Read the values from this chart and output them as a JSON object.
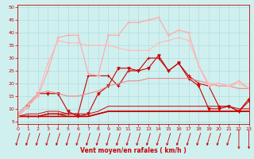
{
  "title": "",
  "xlabel": "Vent moyen/en rafales ( km/h )",
  "ylabel": "",
  "background_color": "#d0f0f0",
  "grid_color": "#aad8d8",
  "x_ticks": [
    0,
    1,
    2,
    3,
    4,
    5,
    6,
    7,
    8,
    9,
    10,
    11,
    12,
    13,
    14,
    15,
    16,
    17,
    18,
    19,
    20,
    21,
    22,
    23
  ],
  "y_ticks": [
    5,
    10,
    15,
    20,
    25,
    30,
    35,
    40,
    45,
    50
  ],
  "ylim": [
    4,
    51
  ],
  "xlim": [
    0,
    23
  ],
  "lines": [
    {
      "x": [
        0,
        1,
        2,
        3,
        4,
        5,
        6,
        7,
        8,
        9,
        10,
        11,
        12,
        13,
        14,
        15,
        16,
        17,
        18,
        19,
        20,
        21,
        22,
        23
      ],
      "y": [
        7,
        7,
        7,
        8,
        8,
        8,
        8,
        23,
        23,
        23,
        19,
        25,
        25,
        30,
        30,
        25,
        28,
        23,
        20,
        19,
        11,
        11,
        9,
        14
      ],
      "color": "#cc0000",
      "linewidth": 0.8,
      "marker": "+",
      "markersize": 3
    },
    {
      "x": [
        0,
        1,
        2,
        3,
        4,
        5,
        6,
        7,
        8,
        9,
        10,
        11,
        12,
        13,
        14,
        15,
        16,
        17,
        18,
        19,
        20,
        21,
        22,
        23
      ],
      "y": [
        7,
        11,
        16,
        16,
        16,
        9,
        7,
        8,
        16,
        19,
        26,
        26,
        25,
        26,
        31,
        25,
        28,
        22,
        19,
        10,
        10,
        11,
        9,
        13
      ],
      "color": "#cc0000",
      "linewidth": 0.8,
      "marker": "v",
      "markersize": 2.5
    },
    {
      "x": [
        0,
        1,
        2,
        3,
        4,
        5,
        6,
        7,
        8,
        9,
        10,
        11,
        12,
        13,
        14,
        15,
        16,
        17,
        18,
        19,
        20,
        21,
        22,
        23
      ],
      "y": [
        7,
        7,
        7,
        7,
        7,
        7,
        7,
        7,
        8,
        9,
        9,
        9,
        9,
        9,
        9,
        9,
        9,
        9,
        9,
        9,
        9,
        9,
        9,
        9
      ],
      "color": "#cc0000",
      "linewidth": 1.2,
      "marker": null,
      "markersize": 0
    },
    {
      "x": [
        0,
        1,
        2,
        3,
        4,
        5,
        6,
        7,
        8,
        9,
        10,
        11,
        12,
        13,
        14,
        15,
        16,
        17,
        18,
        19,
        20,
        21,
        22,
        23
      ],
      "y": [
        7,
        7,
        7,
        8,
        8,
        7,
        7,
        7,
        8,
        9,
        9,
        9,
        9,
        9,
        9,
        9,
        9,
        9,
        9,
        9,
        9,
        9,
        9,
        9
      ],
      "color": "#cc0000",
      "linewidth": 0.9,
      "marker": null,
      "markersize": 0
    },
    {
      "x": [
        0,
        1,
        2,
        3,
        4,
        5,
        6,
        7,
        8,
        9,
        10,
        11,
        12,
        13,
        14,
        15,
        16,
        17,
        18,
        19,
        20,
        21,
        22,
        23
      ],
      "y": [
        7,
        8,
        8,
        9,
        9,
        8,
        8,
        8,
        9,
        11,
        11,
        11,
        11,
        11,
        11,
        11,
        11,
        11,
        11,
        11,
        11,
        11,
        10,
        10
      ],
      "color": "#cc0000",
      "linewidth": 0.7,
      "marker": null,
      "markersize": 0
    },
    {
      "x": [
        0,
        1,
        2,
        3,
        4,
        5,
        6,
        7,
        8,
        9,
        10,
        11,
        12,
        13,
        14,
        15,
        16,
        17,
        18,
        19,
        20,
        21,
        22,
        23
      ],
      "y": [
        8,
        12,
        16,
        17,
        16,
        15,
        15,
        16,
        17,
        19,
        20,
        21,
        21,
        22,
        22,
        22,
        22,
        22,
        21,
        20,
        19,
        19,
        18,
        18
      ],
      "color": "#ee8888",
      "linewidth": 0.8,
      "marker": null,
      "markersize": 0
    },
    {
      "x": [
        0,
        1,
        2,
        3,
        4,
        5,
        6,
        7,
        8,
        9,
        10,
        11,
        12,
        13,
        14,
        15,
        16,
        17,
        18,
        19,
        20,
        21,
        22,
        23
      ],
      "y": [
        7,
        11,
        15,
        25,
        38,
        39,
        39,
        24,
        23,
        39,
        39,
        44,
        44,
        45,
        46,
        39,
        41,
        40,
        27,
        19,
        20,
        19,
        21,
        18
      ],
      "color": "#ffaaaa",
      "linewidth": 0.9,
      "marker": "+",
      "markersize": 3
    },
    {
      "x": [
        0,
        1,
        2,
        3,
        4,
        5,
        6,
        7,
        8,
        9,
        10,
        11,
        12,
        13,
        14,
        15,
        16,
        17,
        18,
        19,
        20,
        21,
        22,
        23
      ],
      "y": [
        7,
        11,
        16,
        28,
        37,
        36,
        36,
        35,
        35,
        35,
        34,
        33,
        33,
        33,
        36,
        37,
        38,
        37,
        27,
        20,
        20,
        19,
        20,
        18
      ],
      "color": "#ffbbbb",
      "linewidth": 0.8,
      "marker": "+",
      "markersize": 2.5
    }
  ],
  "arrow_color": "#cc0000",
  "arrow_angles": [
    225,
    225,
    225,
    225,
    225,
    225,
    225,
    225,
    225,
    225,
    225,
    225,
    225,
    225,
    225,
    225,
    225,
    225,
    225,
    225,
    225,
    225,
    270,
    270
  ]
}
